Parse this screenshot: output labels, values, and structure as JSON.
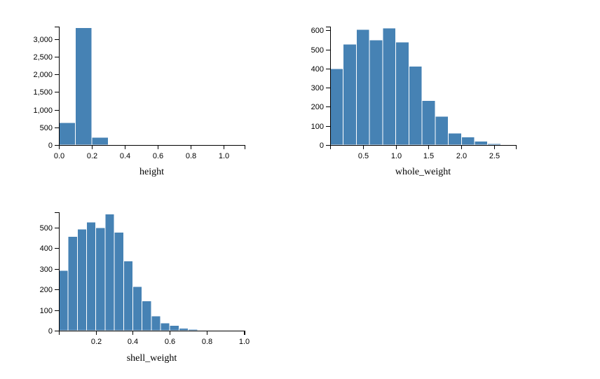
{
  "colors": {
    "bar": "#4682b4",
    "bar_stroke": "#ffffff"
  },
  "chart_data": [
    {
      "type": "bar",
      "id": "height",
      "xlabel": "height",
      "ylabel": "",
      "xlim": [
        0,
        1.13
      ],
      "ylim": [
        0,
        3350
      ],
      "x_ticks": [
        0,
        0.2,
        0.4,
        0.6,
        0.8,
        1.0
      ],
      "x_tick_labels": [
        "0.0",
        "0.2",
        "0.4",
        "0.6",
        "0.8",
        "1.0"
      ],
      "y_ticks": [
        0,
        500,
        1000,
        1500,
        2000,
        2500,
        3000
      ],
      "y_tick_labels": [
        "0",
        "500",
        "1,000",
        "1,500",
        "2,000",
        "2,500",
        "3,000"
      ],
      "bins": [
        {
          "x0": 0.0,
          "x1": 0.1,
          "count": 630
        },
        {
          "x0": 0.1,
          "x1": 0.2,
          "count": 3320
        },
        {
          "x0": 0.2,
          "x1": 0.3,
          "count": 220
        },
        {
          "x0": 0.3,
          "x1": 0.4,
          "count": 1
        },
        {
          "x0": 0.5,
          "x1": 0.6,
          "count": 1
        },
        {
          "x0": 1.1,
          "x1": 1.2,
          "count": 1
        }
      ]
    },
    {
      "type": "bar",
      "id": "whole_weight",
      "xlabel": "whole_weight",
      "ylabel": "",
      "xlim": [
        0,
        2.83
      ],
      "ylim": [
        0,
        620
      ],
      "x_ticks": [
        0.5,
        1.0,
        1.5,
        2.0,
        2.5
      ],
      "x_tick_labels": [
        "0.5",
        "1.0",
        "1.5",
        "2.0",
        "2.5"
      ],
      "y_ticks": [
        0,
        100,
        200,
        300,
        400,
        500,
        600
      ],
      "y_tick_labels": [
        "0",
        "100",
        "200",
        "300",
        "400",
        "500",
        "600"
      ],
      "bins": [
        {
          "x0": 0.0,
          "x1": 0.2,
          "count": 400
        },
        {
          "x0": 0.2,
          "x1": 0.4,
          "count": 528
        },
        {
          "x0": 0.4,
          "x1": 0.6,
          "count": 605
        },
        {
          "x0": 0.6,
          "x1": 0.8,
          "count": 550
        },
        {
          "x0": 0.8,
          "x1": 1.0,
          "count": 612
        },
        {
          "x0": 1.0,
          "x1": 1.2,
          "count": 540
        },
        {
          "x0": 1.2,
          "x1": 1.4,
          "count": 412
        },
        {
          "x0": 1.4,
          "x1": 1.6,
          "count": 233
        },
        {
          "x0": 1.6,
          "x1": 1.8,
          "count": 150
        },
        {
          "x0": 1.8,
          "x1": 2.0,
          "count": 62
        },
        {
          "x0": 2.0,
          "x1": 2.2,
          "count": 42
        },
        {
          "x0": 2.2,
          "x1": 2.4,
          "count": 20
        },
        {
          "x0": 2.4,
          "x1": 2.6,
          "count": 7
        },
        {
          "x0": 2.6,
          "x1": 2.8,
          "count": 1
        }
      ]
    },
    {
      "type": "bar",
      "id": "shell_weight",
      "xlabel": "shell_weight",
      "ylabel": "",
      "xlim": [
        0,
        1.005
      ],
      "ylim": [
        0,
        575
      ],
      "x_ticks": [
        0.2,
        0.4,
        0.6,
        0.8,
        1.0
      ],
      "x_tick_labels": [
        "0.2",
        "0.4",
        "0.6",
        "0.8",
        "1.0"
      ],
      "y_ticks": [
        0,
        100,
        200,
        300,
        400,
        500
      ],
      "y_tick_labels": [
        "0",
        "100",
        "200",
        "300",
        "400",
        "500"
      ],
      "bins": [
        {
          "x0": 0.0,
          "x1": 0.05,
          "count": 292
        },
        {
          "x0": 0.05,
          "x1": 0.1,
          "count": 458
        },
        {
          "x0": 0.1,
          "x1": 0.15,
          "count": 493
        },
        {
          "x0": 0.15,
          "x1": 0.2,
          "count": 527
        },
        {
          "x0": 0.2,
          "x1": 0.25,
          "count": 500
        },
        {
          "x0": 0.25,
          "x1": 0.3,
          "count": 566
        },
        {
          "x0": 0.3,
          "x1": 0.35,
          "count": 478
        },
        {
          "x0": 0.35,
          "x1": 0.4,
          "count": 338
        },
        {
          "x0": 0.4,
          "x1": 0.45,
          "count": 215
        },
        {
          "x0": 0.45,
          "x1": 0.5,
          "count": 145
        },
        {
          "x0": 0.5,
          "x1": 0.55,
          "count": 72
        },
        {
          "x0": 0.55,
          "x1": 0.6,
          "count": 38
        },
        {
          "x0": 0.6,
          "x1": 0.65,
          "count": 25
        },
        {
          "x0": 0.65,
          "x1": 0.7,
          "count": 12
        },
        {
          "x0": 0.7,
          "x1": 0.75,
          "count": 6
        },
        {
          "x0": 0.75,
          "x1": 0.8,
          "count": 3
        },
        {
          "x0": 0.8,
          "x1": 0.85,
          "count": 1
        },
        {
          "x0": 0.85,
          "x1": 0.9,
          "count": 2
        },
        {
          "x0": 0.95,
          "x1": 1.0,
          "count": 1
        }
      ]
    }
  ]
}
